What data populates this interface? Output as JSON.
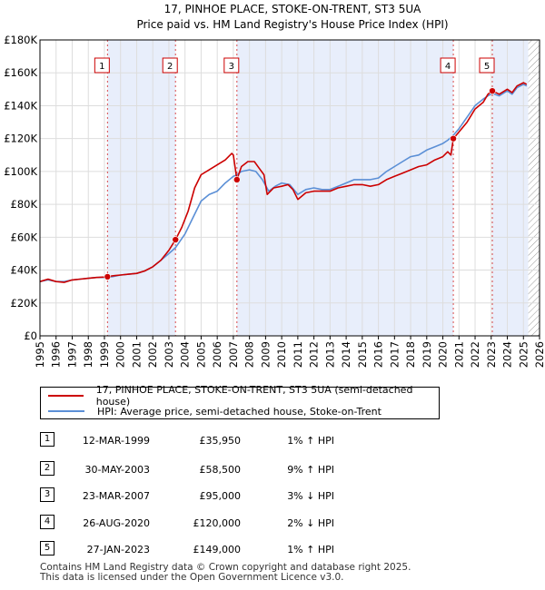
{
  "chart_data": {
    "type": "line",
    "title": "17, PINHOE PLACE, STOKE-ON-TRENT, ST3 5UA",
    "subtitle": "Price paid vs. HM Land Registry's House Price Index (HPI)",
    "xlabel": "",
    "ylabel": "",
    "xlim": [
      1995,
      2026
    ],
    "ylim": [
      0,
      180000
    ],
    "y_ticks": [
      {
        "value": 0,
        "label": "£0"
      },
      {
        "value": 20000,
        "label": "£20K"
      },
      {
        "value": 40000,
        "label": "£40K"
      },
      {
        "value": 60000,
        "label": "£60K"
      },
      {
        "value": 80000,
        "label": "£80K"
      },
      {
        "value": 100000,
        "label": "£100K"
      },
      {
        "value": 120000,
        "label": "£120K"
      },
      {
        "value": 140000,
        "label": "£140K"
      },
      {
        "value": 160000,
        "label": "£160K"
      },
      {
        "value": 180000,
        "label": "£180K"
      }
    ],
    "x_ticks": [
      "1995",
      "1996",
      "1997",
      "1998",
      "1999",
      "2000",
      "2001",
      "2002",
      "2003",
      "2004",
      "2005",
      "2006",
      "2007",
      "2008",
      "2009",
      "2010",
      "2011",
      "2012",
      "2013",
      "2014",
      "2015",
      "2016",
      "2017",
      "2018",
      "2019",
      "2020",
      "2021",
      "2022",
      "2023",
      "2024",
      "2025",
      "2026"
    ],
    "shaded_ranges": [
      [
        1999.19,
        2003.41
      ],
      [
        2007.22,
        2020.65
      ],
      [
        2023.07,
        2025.3
      ]
    ],
    "hatched_from": 2025.3,
    "series": [
      {
        "name": "17, PINHOE PLACE, STOKE-ON-TRENT, ST3 5UA (semi-detached house)",
        "color": "#cc0000",
        "points": [
          [
            1995.0,
            33000
          ],
          [
            1995.5,
            34500
          ],
          [
            1996.0,
            33000
          ],
          [
            1996.5,
            32500
          ],
          [
            1997.0,
            34000
          ],
          [
            1997.5,
            34500
          ],
          [
            1998.0,
            35000
          ],
          [
            1998.5,
            35500
          ],
          [
            1999.0,
            35800
          ],
          [
            1999.19,
            35950
          ],
          [
            1999.5,
            36500
          ],
          [
            2000.0,
            37000
          ],
          [
            2000.5,
            37500
          ],
          [
            2001.0,
            38000
          ],
          [
            2001.5,
            39500
          ],
          [
            2002.0,
            42000
          ],
          [
            2002.5,
            46000
          ],
          [
            2003.0,
            52000
          ],
          [
            2003.41,
            58500
          ],
          [
            2003.8,
            66000
          ],
          [
            2004.2,
            76000
          ],
          [
            2004.6,
            90000
          ],
          [
            2005.0,
            98000
          ],
          [
            2005.5,
            101000
          ],
          [
            2006.0,
            104000
          ],
          [
            2006.5,
            107000
          ],
          [
            2006.9,
            111000
          ],
          [
            2007.0,
            110000
          ],
          [
            2007.22,
            95000
          ],
          [
            2007.5,
            103000
          ],
          [
            2007.9,
            106000
          ],
          [
            2008.3,
            106000
          ],
          [
            2008.6,
            102000
          ],
          [
            2008.9,
            98000
          ],
          [
            2009.1,
            86000
          ],
          [
            2009.5,
            90000
          ],
          [
            2010.0,
            91000
          ],
          [
            2010.4,
            92000
          ],
          [
            2010.7,
            89000
          ],
          [
            2011.0,
            83000
          ],
          [
            2011.5,
            87000
          ],
          [
            2012.0,
            88000
          ],
          [
            2012.5,
            88000
          ],
          [
            2013.0,
            88000
          ],
          [
            2013.5,
            90000
          ],
          [
            2014.0,
            91000
          ],
          [
            2014.5,
            92000
          ],
          [
            2015.0,
            92000
          ],
          [
            2015.5,
            91000
          ],
          [
            2016.0,
            92000
          ],
          [
            2016.5,
            95000
          ],
          [
            2017.0,
            97000
          ],
          [
            2017.5,
            99000
          ],
          [
            2018.0,
            101000
          ],
          [
            2018.5,
            103000
          ],
          [
            2019.0,
            104000
          ],
          [
            2019.5,
            107000
          ],
          [
            2020.0,
            109000
          ],
          [
            2020.3,
            112000
          ],
          [
            2020.5,
            110000
          ],
          [
            2020.65,
            120000
          ],
          [
            2021.0,
            124000
          ],
          [
            2021.5,
            130000
          ],
          [
            2022.0,
            138000
          ],
          [
            2022.5,
            142000
          ],
          [
            2022.8,
            147000
          ],
          [
            2023.07,
            149000
          ],
          [
            2023.5,
            147000
          ],
          [
            2024.0,
            150000
          ],
          [
            2024.3,
            148000
          ],
          [
            2024.6,
            152000
          ],
          [
            2025.0,
            154000
          ],
          [
            2025.2,
            153000
          ]
        ]
      },
      {
        "name": "HPI: Average price, semi-detached house, Stoke-on-Trent",
        "color": "#5b8fd6",
        "points": [
          [
            1995.0,
            33000
          ],
          [
            1995.5,
            34000
          ],
          [
            1996.0,
            33000
          ],
          [
            1996.5,
            33000
          ],
          [
            1997.0,
            34000
          ],
          [
            1997.5,
            34500
          ],
          [
            1998.0,
            35000
          ],
          [
            1998.5,
            35500
          ],
          [
            1999.0,
            35500
          ],
          [
            1999.19,
            35600
          ],
          [
            1999.5,
            36000
          ],
          [
            2000.0,
            37000
          ],
          [
            2000.5,
            37500
          ],
          [
            2001.0,
            38000
          ],
          [
            2001.5,
            39500
          ],
          [
            2002.0,
            42000
          ],
          [
            2002.5,
            46000
          ],
          [
            2003.0,
            50000
          ],
          [
            2003.41,
            53600
          ],
          [
            2004.0,
            62000
          ],
          [
            2004.5,
            72000
          ],
          [
            2005.0,
            82000
          ],
          [
            2005.5,
            86000
          ],
          [
            2006.0,
            88000
          ],
          [
            2006.5,
            93000
          ],
          [
            2007.0,
            97000
          ],
          [
            2007.22,
            98000
          ],
          [
            2007.5,
            100000
          ],
          [
            2008.0,
            101000
          ],
          [
            2008.4,
            100000
          ],
          [
            2008.8,
            95000
          ],
          [
            2009.2,
            88000
          ],
          [
            2009.6,
            91000
          ],
          [
            2010.0,
            93000
          ],
          [
            2010.5,
            92000
          ],
          [
            2011.0,
            86000
          ],
          [
            2011.5,
            89000
          ],
          [
            2012.0,
            90000
          ],
          [
            2012.5,
            89000
          ],
          [
            2013.0,
            89000
          ],
          [
            2013.5,
            91000
          ],
          [
            2014.0,
            93000
          ],
          [
            2014.5,
            95000
          ],
          [
            2015.0,
            95000
          ],
          [
            2015.5,
            95000
          ],
          [
            2016.0,
            96000
          ],
          [
            2016.5,
            100000
          ],
          [
            2017.0,
            103000
          ],
          [
            2017.5,
            106000
          ],
          [
            2018.0,
            109000
          ],
          [
            2018.5,
            110000
          ],
          [
            2019.0,
            113000
          ],
          [
            2019.5,
            115000
          ],
          [
            2020.0,
            117000
          ],
          [
            2020.3,
            119000
          ],
          [
            2020.65,
            122000
          ],
          [
            2021.0,
            126000
          ],
          [
            2021.5,
            133000
          ],
          [
            2022.0,
            140000
          ],
          [
            2022.5,
            144000
          ],
          [
            2022.8,
            146000
          ],
          [
            2023.07,
            147500
          ],
          [
            2023.5,
            146000
          ],
          [
            2024.0,
            149000
          ],
          [
            2024.3,
            147000
          ],
          [
            2024.6,
            151000
          ],
          [
            2025.0,
            153000
          ],
          [
            2025.2,
            152000
          ]
        ]
      }
    ],
    "markers": [
      {
        "label": "1",
        "x": 1999.19,
        "y": 35950
      },
      {
        "label": "2",
        "x": 2003.41,
        "y": 58500
      },
      {
        "label": "3",
        "x": 2007.22,
        "y": 95000
      },
      {
        "label": "4",
        "x": 2020.65,
        "y": 120000
      },
      {
        "label": "5",
        "x": 2023.07,
        "y": 149000
      }
    ]
  },
  "legend": {
    "red_label": "17, PINHOE PLACE, STOKE-ON-TRENT, ST3 5UA (semi-detached house)",
    "blue_label": "HPI: Average price, semi-detached house, Stoke-on-Trent",
    "red_color": "#cc0000",
    "blue_color": "#5b8fd6"
  },
  "transactions": [
    {
      "num": "1",
      "date": "12-MAR-1999",
      "price": "£35,950",
      "hpi": "1% ↑ HPI"
    },
    {
      "num": "2",
      "date": "30-MAY-2003",
      "price": "£58,500",
      "hpi": "9% ↑ HPI"
    },
    {
      "num": "3",
      "date": "23-MAR-2007",
      "price": "£95,000",
      "hpi": "3% ↓ HPI"
    },
    {
      "num": "4",
      "date": "26-AUG-2020",
      "price": "£120,000",
      "hpi": "2% ↓ HPI"
    },
    {
      "num": "5",
      "date": "27-JAN-2023",
      "price": "£149,000",
      "hpi": "1% ↑ HPI"
    }
  ],
  "footer": {
    "line1": "Contains HM Land Registry data © Crown copyright and database right 2025.",
    "line2": "This data is licensed under the Open Government Licence v3.0."
  }
}
